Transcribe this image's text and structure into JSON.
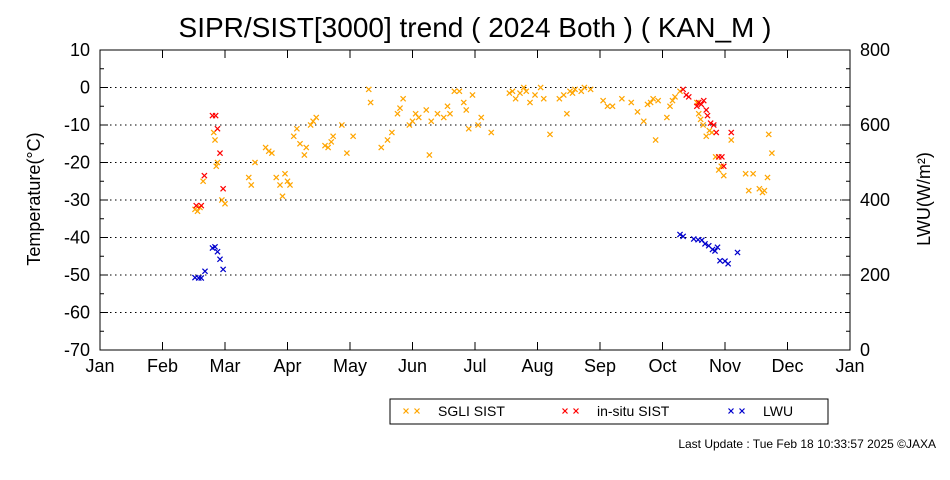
{
  "chart_data": {
    "type": "scatter",
    "title": "SIPR/SIST[3000] trend ( 2024 Both ) ( KAN_M )",
    "ylabel": "Temperature(°C)",
    "y2label": "LWU(W/m²)",
    "ylim": [
      -70,
      10
    ],
    "y2lim": [
      0,
      800
    ],
    "yticks": [
      "10",
      "0",
      "-10",
      "-20",
      "-30",
      "-40",
      "-50",
      "-60",
      "-70"
    ],
    "y2ticks": [
      "800",
      "600",
      "400",
      "200",
      "0"
    ],
    "xticks": [
      "Jan",
      "Feb",
      "Mar",
      "Apr",
      "May",
      "Jun",
      "Jul",
      "Aug",
      "Sep",
      "Oct",
      "Nov",
      "Dec",
      "Jan"
    ],
    "xlim": [
      0,
      12
    ],
    "grid": "dotted horizontal",
    "legend_position": "bottom",
    "series": [
      {
        "name": "SGLI SIST",
        "color": "#ffa500",
        "axis": "left",
        "points": [
          [
            1.52,
            -32.5
          ],
          [
            1.56,
            -33
          ],
          [
            1.6,
            -32
          ],
          [
            1.65,
            -25
          ],
          [
            1.82,
            -12
          ],
          [
            1.84,
            -14
          ],
          [
            1.86,
            -21
          ],
          [
            1.88,
            -20
          ],
          [
            1.95,
            -30
          ],
          [
            2.0,
            -31
          ],
          [
            2.38,
            -24
          ],
          [
            2.42,
            -26
          ],
          [
            2.48,
            -20
          ],
          [
            2.65,
            -16
          ],
          [
            2.7,
            -17
          ],
          [
            2.75,
            -17.5
          ],
          [
            2.82,
            -24
          ],
          [
            2.88,
            -26
          ],
          [
            2.92,
            -29
          ],
          [
            2.96,
            -23
          ],
          [
            3.0,
            -25
          ],
          [
            3.04,
            -26
          ],
          [
            3.1,
            -13
          ],
          [
            3.15,
            -11
          ],
          [
            3.2,
            -15
          ],
          [
            3.27,
            -18
          ],
          [
            3.3,
            -16
          ],
          [
            3.37,
            -10
          ],
          [
            3.41,
            -9
          ],
          [
            3.46,
            -8
          ],
          [
            3.6,
            -15.5
          ],
          [
            3.65,
            -16
          ],
          [
            3.7,
            -14.5
          ],
          [
            3.73,
            -13
          ],
          [
            3.87,
            -10
          ],
          [
            3.95,
            -17.5
          ],
          [
            4.05,
            -13
          ],
          [
            4.3,
            -0.5
          ],
          [
            4.33,
            -4
          ],
          [
            4.5,
            -16
          ],
          [
            4.6,
            -14
          ],
          [
            4.67,
            -12
          ],
          [
            4.76,
            -7
          ],
          [
            4.8,
            -5.5
          ],
          [
            4.85,
            -3
          ],
          [
            4.95,
            -10
          ],
          [
            5.0,
            -9
          ],
          [
            5.05,
            -7
          ],
          [
            5.1,
            -8
          ],
          [
            5.22,
            -6
          ],
          [
            5.27,
            -18
          ],
          [
            5.3,
            -9
          ],
          [
            5.4,
            -7
          ],
          [
            5.5,
            -8
          ],
          [
            5.56,
            -5
          ],
          [
            5.6,
            -7
          ],
          [
            5.67,
            -1
          ],
          [
            5.75,
            -1
          ],
          [
            5.82,
            -4
          ],
          [
            5.86,
            -6
          ],
          [
            5.9,
            -11
          ],
          [
            5.96,
            -2
          ],
          [
            6.05,
            -10
          ],
          [
            6.1,
            -8
          ],
          [
            6.26,
            -12
          ],
          [
            6.55,
            -1.5
          ],
          [
            6.6,
            -1
          ],
          [
            6.65,
            -3
          ],
          [
            6.72,
            -1.5
          ],
          [
            6.78,
            0
          ],
          [
            6.82,
            -1
          ],
          [
            6.88,
            -4
          ],
          [
            6.96,
            -2
          ],
          [
            7.05,
            0
          ],
          [
            7.1,
            -3
          ],
          [
            7.2,
            -12.5
          ],
          [
            7.35,
            -3
          ],
          [
            7.42,
            -2
          ],
          [
            7.47,
            -7
          ],
          [
            7.52,
            -1
          ],
          [
            7.56,
            -1.5
          ],
          [
            7.6,
            -0.5
          ],
          [
            7.7,
            -1
          ],
          [
            7.75,
            0
          ],
          [
            7.85,
            -0.5
          ],
          [
            8.05,
            -3.5
          ],
          [
            8.12,
            -5
          ],
          [
            8.2,
            -5
          ],
          [
            8.35,
            -3
          ],
          [
            8.5,
            -4
          ],
          [
            8.6,
            -6.5
          ],
          [
            8.7,
            -9
          ],
          [
            8.76,
            -4.5
          ],
          [
            8.81,
            -4
          ],
          [
            8.85,
            -3
          ],
          [
            8.89,
            -14
          ],
          [
            8.93,
            -3.5
          ],
          [
            9.07,
            -8
          ],
          [
            9.12,
            -5
          ],
          [
            9.16,
            -3.5
          ],
          [
            9.2,
            -2.5
          ],
          [
            9.28,
            -1
          ],
          [
            9.55,
            -4
          ],
          [
            9.58,
            -7
          ],
          [
            9.61,
            -8.5
          ],
          [
            9.65,
            -10
          ],
          [
            9.7,
            -13
          ],
          [
            9.75,
            -11.5
          ],
          [
            9.79,
            -12
          ],
          [
            9.85,
            -18.5
          ],
          [
            9.9,
            -22
          ],
          [
            9.94,
            -21
          ],
          [
            9.98,
            -23.5
          ],
          [
            10.1,
            -14
          ],
          [
            10.33,
            -23
          ],
          [
            10.38,
            -27.5
          ],
          [
            10.45,
            -23
          ],
          [
            10.55,
            -27
          ],
          [
            10.6,
            -28
          ],
          [
            10.63,
            -27.5
          ],
          [
            10.68,
            -24
          ],
          [
            10.7,
            -12.5
          ],
          [
            10.75,
            -17.5
          ]
        ]
      },
      {
        "name": "in-situ SIST",
        "color": "#ff0000",
        "axis": "left",
        "points": [
          [
            1.54,
            -31.5
          ],
          [
            1.62,
            -31.5
          ],
          [
            1.67,
            -23.5
          ],
          [
            1.8,
            -7.5
          ],
          [
            1.85,
            -7.5
          ],
          [
            1.88,
            -11
          ],
          [
            1.92,
            -17.5
          ],
          [
            1.97,
            -27
          ],
          [
            9.33,
            -0.5
          ],
          [
            9.38,
            -2
          ],
          [
            9.42,
            -2.5
          ],
          [
            9.55,
            -5
          ],
          [
            9.58,
            -4
          ],
          [
            9.62,
            -4.5
          ],
          [
            9.66,
            -3.5
          ],
          [
            9.7,
            -6
          ],
          [
            9.72,
            -7.5
          ],
          [
            9.77,
            -9.5
          ],
          [
            9.82,
            -10
          ],
          [
            9.86,
            -12
          ],
          [
            9.9,
            -18.5
          ],
          [
            9.95,
            -18.5
          ],
          [
            9.98,
            -21
          ],
          [
            10.1,
            -12
          ]
        ]
      },
      {
        "name": "LWU",
        "color": "#0000cc",
        "axis": "right",
        "points": [
          [
            1.52,
            193
          ],
          [
            1.58,
            192
          ],
          [
            1.62,
            192
          ],
          [
            1.68,
            210
          ],
          [
            1.8,
            272
          ],
          [
            1.84,
            275
          ],
          [
            1.88,
            262
          ],
          [
            1.92,
            242
          ],
          [
            1.97,
            215
          ],
          [
            9.28,
            308
          ],
          [
            9.33,
            303
          ],
          [
            9.5,
            296
          ],
          [
            9.57,
            294
          ],
          [
            9.63,
            293
          ],
          [
            9.68,
            283
          ],
          [
            9.74,
            278
          ],
          [
            9.8,
            268
          ],
          [
            9.84,
            264
          ],
          [
            9.88,
            274
          ],
          [
            9.92,
            238
          ],
          [
            10.0,
            237
          ],
          [
            10.05,
            230
          ],
          [
            10.2,
            260
          ]
        ]
      }
    ]
  },
  "footer": "Last Update : Tue Feb 18 10:33:57 2025  ©JAXA"
}
